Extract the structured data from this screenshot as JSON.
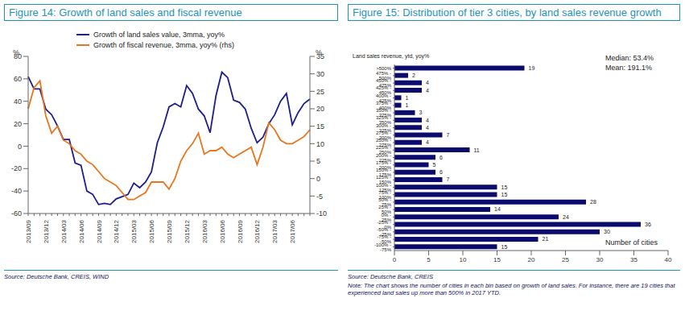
{
  "chart_data": [
    {
      "type": "line",
      "title": "Figure 14: Growth of land sales and fiscal revenue",
      "categories": [
        "2013/09",
        null,
        null,
        "2013/12",
        null,
        null,
        "2014/03",
        null,
        null,
        "2014/06",
        null,
        null,
        "2014/09",
        null,
        null,
        "2014/12",
        null,
        null,
        "2015/03",
        null,
        null,
        "2015/06",
        null,
        null,
        "2015/09",
        null,
        null,
        "2015/12",
        null,
        null,
        "2016/03",
        null,
        null,
        "2016/06",
        null,
        null,
        "2016/09",
        null,
        null,
        "2016/12",
        null,
        null,
        "2017/03",
        null,
        null,
        "2017/06",
        null,
        null,
        null
      ],
      "ylabel": "%",
      "y2label": "%",
      "ylim": [
        -60,
        80
      ],
      "yticks": [
        -60,
        -40,
        -20,
        0,
        20,
        40,
        60,
        80
      ],
      "y2lim": [
        -10,
        35
      ],
      "y2ticks": [
        -10,
        -5,
        0,
        5,
        10,
        15,
        20,
        25,
        30,
        35
      ],
      "grid": false,
      "legend": "top",
      "series": [
        {
          "name": "Growth of land sales value, 3mma, yoy%",
          "color": "#1c1c8c",
          "values": [
            62,
            51,
            51,
            33,
            28,
            18,
            6,
            6,
            -15,
            -17,
            -40,
            -43,
            -52,
            -51,
            -52,
            -47,
            -45,
            -43,
            -33,
            -37,
            -32,
            -23,
            3,
            17,
            35,
            38,
            35,
            54,
            47,
            33,
            27,
            12,
            45,
            66,
            61,
            41,
            39,
            33,
            16,
            3,
            8,
            20,
            28,
            40,
            47,
            19,
            30,
            38,
            42
          ]
        },
        {
          "name": "Growth of fiscal revenue, 3mma, yoy% (rhs)",
          "color": "#e8761e",
          "axis": "y2",
          "values": [
            20,
            26,
            28,
            18,
            13,
            15,
            11,
            10,
            8,
            7,
            5,
            4,
            2,
            0,
            -1,
            -2,
            -4,
            -6,
            -6,
            -5,
            -4,
            -1,
            -1,
            -1,
            -3,
            0,
            5,
            8,
            10,
            13,
            7,
            8,
            8,
            9,
            7,
            6,
            7,
            8,
            9,
            4,
            9,
            16,
            14,
            11,
            10,
            10,
            11,
            12,
            14
          ]
        }
      ],
      "source": "Source: Deutsche Bank, CREIS, WIND"
    },
    {
      "type": "bar",
      "orientation": "horizontal",
      "title": "Figure 15: Distribution of tier 3 cities, by land sales revenue growth",
      "ylabel": "Land sales revenue, ytd, yoy%",
      "xlabel": "Number of cities",
      "categories": [
        ">500%",
        "475% - 500%",
        "450% - 475%",
        "425% - 450%",
        "400% - 425%",
        "375% - 400%",
        "350% - 375%",
        "325% - 350%",
        "300% - 325%",
        "275% - 300%",
        "250% - 275%",
        "225% - 250%",
        "200% - 225%",
        "175% - 200%",
        "150% - 175%",
        "125% - 150%",
        "100% - 125%",
        "75% - 100%",
        "50% - 75%",
        "25% - 50%",
        "0% - 25%",
        "-25% - 0%",
        "-50% - -25%",
        "-75% - -50%",
        "-100% - -75%"
      ],
      "values": [
        19,
        2,
        4,
        4,
        1,
        1,
        3,
        4,
        4,
        7,
        4,
        11,
        6,
        5,
        6,
        7,
        15,
        15,
        28,
        14,
        24,
        36,
        30,
        21,
        15
      ],
      "color": "#0b0b6e",
      "xlim": [
        0,
        40
      ],
      "xticks": [
        0,
        5,
        10,
        15,
        20,
        25,
        30,
        35,
        40
      ],
      "data_labels": true,
      "grid": false,
      "annotations": [
        "Median: 53.4%",
        "Mean: 191.1%"
      ],
      "note": "Note: The chart shows the number of cities in each bin based on growth of land sales. For instance, there are 19 cities that experienced land sales up more than 500% in 2017 YTD.",
      "source": "Source: Deutsche Bank, CREIS"
    }
  ]
}
